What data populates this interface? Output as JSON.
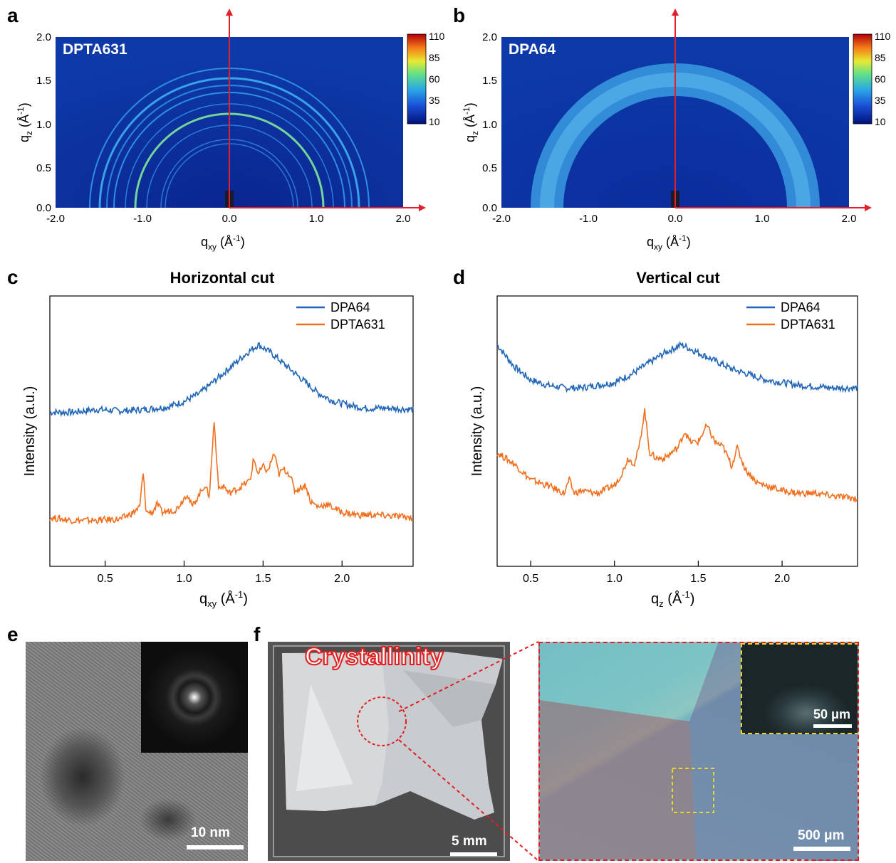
{
  "panel_labels": [
    "a",
    "b",
    "c",
    "d",
    "e",
    "f"
  ],
  "panel_a": {
    "label": "DPTA631",
    "ylabel_main": "q",
    "ylabel_sub": "z",
    "ylabel_unit": "(Å",
    "xlabel_main": "q",
    "xlabel_sub": "xy",
    "xlabel_unit": "(Å",
    "unit_exp": "-1",
    "unit_close": ")",
    "yticks": [
      "2.0",
      "1.5",
      "1.0",
      "0.5",
      "0.0"
    ],
    "xticks": [
      "-2.0",
      "-1.0",
      "0.0",
      "1.0",
      "2.0"
    ],
    "colorbar_ticks": [
      "110",
      "85",
      "60",
      "35",
      "10"
    ]
  },
  "panel_b": {
    "label": "DPA64",
    "ylabel_main": "q",
    "ylabel_sub": "z",
    "ylabel_unit": "(Å",
    "xlabel_main": "q",
    "xlabel_sub": "xy",
    "xlabel_unit": "(Å",
    "unit_exp": "-1",
    "unit_close": ")",
    "yticks": [
      "2.0",
      "1.5",
      "1.0",
      "0.5",
      "0.0"
    ],
    "xticks": [
      "-2.0",
      "-1.0",
      "0.0",
      "1.0",
      "2.0"
    ],
    "colorbar_ticks": [
      "110",
      "85",
      "60",
      "35",
      "10"
    ]
  },
  "chart_data": [
    {
      "type": "line",
      "title": "Horizontal cut",
      "xlabel_main": "q",
      "xlabel_sub": "xy",
      "xlabel_unit": "(Å",
      "xlabel_exp": "-1",
      "xlabel_close": ")",
      "ylabel": "Intensity (a.u.)",
      "xlim": [
        0.15,
        2.45
      ],
      "xticks": [
        "0.5",
        "1.0",
        "1.5",
        "2.0"
      ],
      "xtick_values": [
        0.5,
        1.0,
        1.5,
        2.0
      ],
      "legend_position": "top-right",
      "series": [
        {
          "name": "DPA64",
          "color": "#2166b7",
          "x": [
            0.15,
            0.3,
            0.45,
            0.6,
            0.75,
            0.9,
            1.0,
            1.1,
            1.2,
            1.3,
            1.4,
            1.47,
            1.55,
            1.65,
            1.75,
            1.85,
            1.95,
            2.05,
            2.15,
            2.3,
            2.45
          ],
          "y": [
            0.57,
            0.57,
            0.58,
            0.575,
            0.58,
            0.59,
            0.61,
            0.64,
            0.69,
            0.74,
            0.79,
            0.82,
            0.79,
            0.74,
            0.69,
            0.64,
            0.61,
            0.595,
            0.585,
            0.585,
            0.58
          ]
        },
        {
          "name": "DPTA631",
          "color": "#f07020",
          "x": [
            0.15,
            0.3,
            0.45,
            0.6,
            0.68,
            0.72,
            0.74,
            0.76,
            0.8,
            0.83,
            0.86,
            0.95,
            1.02,
            1.05,
            1.1,
            1.13,
            1.16,
            1.19,
            1.22,
            1.25,
            1.28,
            1.35,
            1.42,
            1.44,
            1.47,
            1.5,
            1.53,
            1.57,
            1.6,
            1.63,
            1.67,
            1.7,
            1.77,
            1.8,
            1.85,
            1.9,
            2.0,
            2.1,
            2.2,
            2.35,
            2.45
          ],
          "y": [
            0.18,
            0.17,
            0.17,
            0.175,
            0.2,
            0.22,
            0.35,
            0.2,
            0.2,
            0.23,
            0.2,
            0.21,
            0.27,
            0.22,
            0.27,
            0.3,
            0.26,
            0.54,
            0.28,
            0.3,
            0.27,
            0.29,
            0.32,
            0.4,
            0.34,
            0.37,
            0.35,
            0.42,
            0.34,
            0.36,
            0.34,
            0.28,
            0.3,
            0.24,
            0.22,
            0.23,
            0.2,
            0.19,
            0.19,
            0.185,
            0.18
          ]
        }
      ]
    },
    {
      "type": "line",
      "title": "Vertical cut",
      "xlabel_main": "q",
      "xlabel_sub": "z",
      "xlabel_unit": "(Å",
      "xlabel_exp": "-1",
      "xlabel_close": ")",
      "ylabel": "Intensity (a.u.)",
      "xlim": [
        0.3,
        2.45
      ],
      "xticks": [
        "0.5",
        "1.0",
        "1.5",
        "2.0"
      ],
      "xtick_values": [
        0.5,
        1.0,
        1.5,
        2.0
      ],
      "legend_position": "top-right",
      "series": [
        {
          "name": "DPA64",
          "color": "#2166b7",
          "x": [
            0.3,
            0.4,
            0.5,
            0.6,
            0.7,
            0.8,
            0.9,
            1.0,
            1.1,
            1.2,
            1.3,
            1.4,
            1.5,
            1.6,
            1.7,
            1.8,
            1.9,
            2.0,
            2.1,
            2.2,
            2.3,
            2.45
          ],
          "y": [
            0.82,
            0.74,
            0.69,
            0.67,
            0.66,
            0.66,
            0.67,
            0.68,
            0.71,
            0.75,
            0.79,
            0.82,
            0.79,
            0.76,
            0.73,
            0.71,
            0.69,
            0.68,
            0.67,
            0.665,
            0.66,
            0.66
          ]
        },
        {
          "name": "DPTA631",
          "color": "#f07020",
          "x": [
            0.3,
            0.4,
            0.5,
            0.6,
            0.7,
            0.73,
            0.76,
            0.8,
            0.9,
            1.0,
            1.05,
            1.08,
            1.12,
            1.15,
            1.18,
            1.21,
            1.25,
            1.3,
            1.38,
            1.42,
            1.45,
            1.5,
            1.55,
            1.6,
            1.65,
            1.7,
            1.73,
            1.78,
            1.85,
            1.9,
            2.0,
            2.1,
            2.2,
            2.3,
            2.45
          ],
          "y": [
            0.42,
            0.38,
            0.32,
            0.3,
            0.27,
            0.32,
            0.27,
            0.28,
            0.27,
            0.3,
            0.35,
            0.4,
            0.38,
            0.45,
            0.58,
            0.42,
            0.4,
            0.4,
            0.44,
            0.5,
            0.46,
            0.46,
            0.52,
            0.46,
            0.44,
            0.37,
            0.44,
            0.36,
            0.31,
            0.3,
            0.28,
            0.27,
            0.27,
            0.26,
            0.25
          ]
        }
      ]
    }
  ],
  "panel_e": {
    "scalebar": "10 nm"
  },
  "panel_f": {
    "annotation": "Crystallinity",
    "scalebar_left": "5 mm",
    "scalebar_right": "500 μm",
    "scalebar_inset": "50 μm"
  }
}
